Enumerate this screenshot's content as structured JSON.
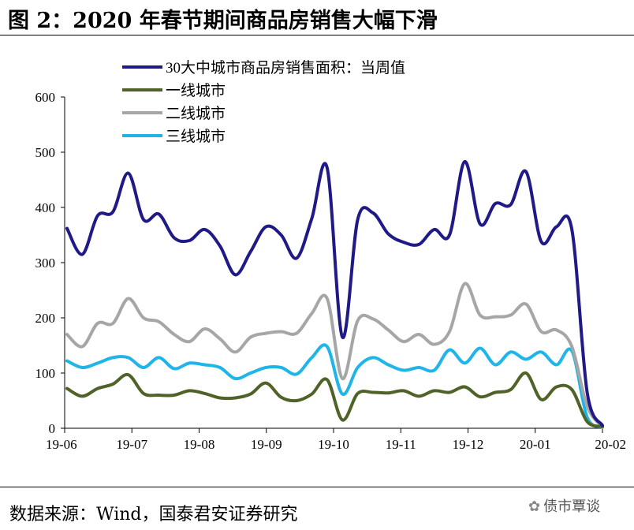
{
  "header": {
    "title": "图 2：2020 年春节期间商品房销售大幅下滑"
  },
  "footer": {
    "source": "数据来源：Wind，国泰君安证券研究",
    "watermark": "债市覃谈"
  },
  "colors": {
    "total": "#1f1a86",
    "tier1": "#4f6228",
    "tier2": "#a6a6a6",
    "tier3": "#1fb5e8"
  },
  "chart_data": {
    "type": "line",
    "ylim": [
      0,
      600
    ],
    "yticks": [
      "0",
      "100",
      "200",
      "300",
      "400",
      "500",
      "600"
    ],
    "xticks": [
      "19-06",
      "19-07",
      "19-08",
      "19-09",
      "19-10",
      "19-11",
      "19-12",
      "20-01",
      "20-02"
    ],
    "legend_position": "top-left",
    "grid": false,
    "series": [
      {
        "name": "30大中城市商品房销售面积：当周值",
        "color": "#1f1a86",
        "values": [
          362,
          315,
          385,
          392,
          462,
          378,
          388,
          345,
          340,
          360,
          330,
          278,
          320,
          365,
          350,
          308,
          380,
          472,
          165,
          378,
          390,
          352,
          337,
          333,
          360,
          350,
          483,
          370,
          407,
          405,
          465,
          338,
          365,
          360,
          65,
          5
        ]
      },
      {
        "name": "一线城市",
        "color": "#4f6228",
        "values": [
          72,
          58,
          72,
          80,
          97,
          63,
          60,
          60,
          68,
          63,
          55,
          55,
          62,
          82,
          56,
          50,
          62,
          88,
          15,
          63,
          65,
          64,
          68,
          58,
          68,
          65,
          75,
          57,
          65,
          70,
          100,
          52,
          75,
          70,
          12,
          3
        ]
      },
      {
        "name": "二线城市",
        "color": "#a6a6a6",
        "values": [
          170,
          148,
          190,
          190,
          235,
          200,
          193,
          170,
          157,
          180,
          162,
          138,
          165,
          172,
          175,
          172,
          208,
          235,
          90,
          195,
          198,
          178,
          157,
          170,
          152,
          175,
          262,
          205,
          202,
          205,
          225,
          175,
          178,
          148,
          40,
          2
        ]
      },
      {
        "name": "三线城市",
        "color": "#1fb5e8",
        "values": [
          122,
          110,
          118,
          128,
          128,
          110,
          128,
          108,
          118,
          115,
          110,
          90,
          100,
          110,
          110,
          98,
          128,
          148,
          62,
          110,
          128,
          115,
          105,
          110,
          105,
          142,
          118,
          145,
          115,
          138,
          125,
          138,
          115,
          140,
          20,
          2
        ]
      }
    ]
  }
}
